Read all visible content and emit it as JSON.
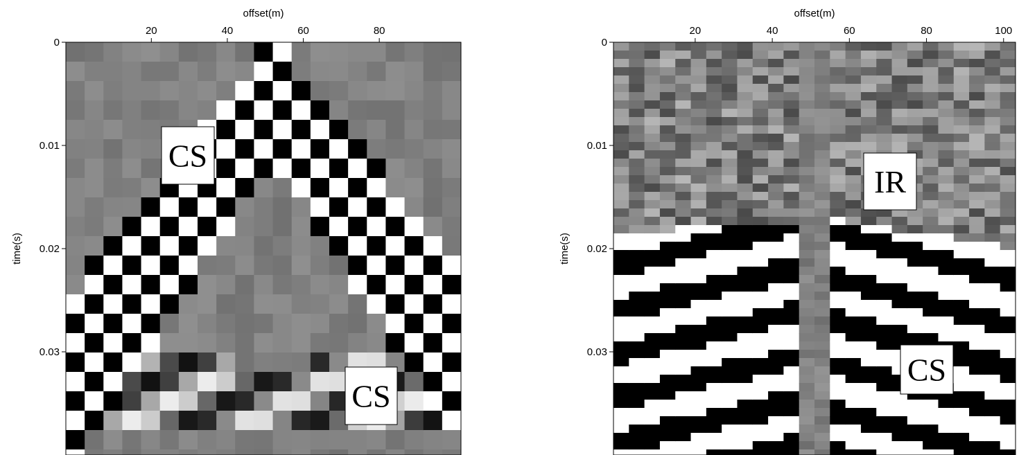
{
  "chart_data": [
    {
      "type": "image",
      "x_label": "offset(m)",
      "y_label": "time(s)",
      "xlim": [
        -2.5,
        101.5
      ],
      "xticks": [
        20,
        40,
        60,
        80
      ],
      "ylim": [
        0,
        0.04
      ],
      "yticks": [
        0,
        0.01,
        0.02,
        0.03
      ],
      "annotations": [
        "CS",
        "CS"
      ]
    },
    {
      "type": "image",
      "x_label": "offset(m)",
      "y_label": "time(s)",
      "xlim": [
        -1.2,
        103.1
      ],
      "xticks": [
        20,
        40,
        60,
        80,
        100
      ],
      "ylim": [
        0,
        0.04
      ],
      "yticks": [
        0,
        0.01,
        0.02,
        0.03
      ],
      "annotations": [
        "IR",
        "CS"
      ]
    }
  ]
}
